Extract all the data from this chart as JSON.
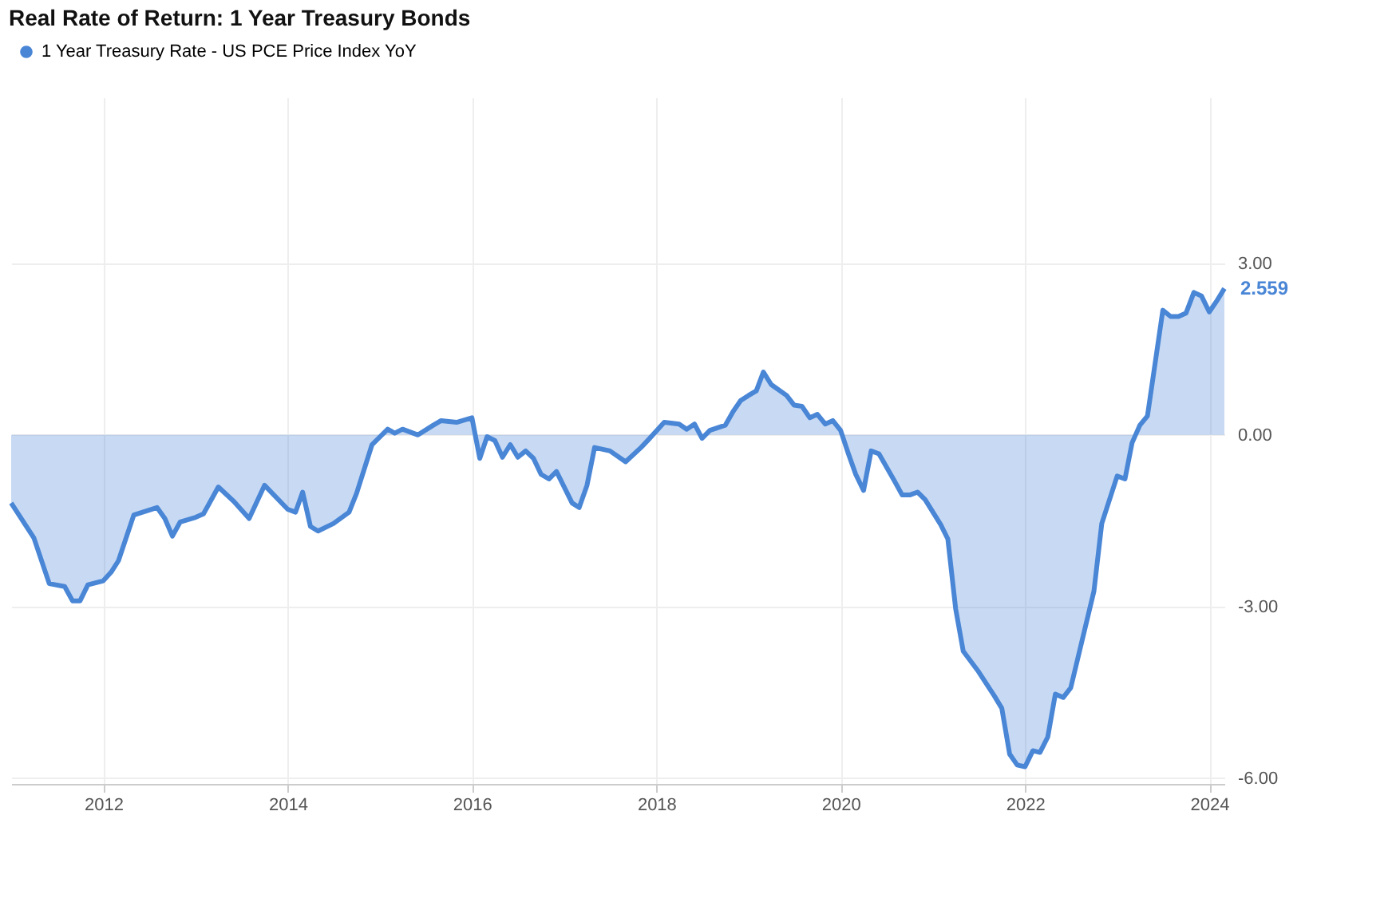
{
  "chart_data": {
    "type": "area",
    "title": "Real Rate of Return: 1 Year Treasury Bonds",
    "x": [
      "2011-01",
      "2011-04",
      "2011-06",
      "2011-08",
      "2011-09",
      "2011-10",
      "2011-11",
      "2012-01",
      "2012-02",
      "2012-03",
      "2012-05",
      "2012-08",
      "2012-09",
      "2012-10",
      "2012-11",
      "2013-01",
      "2013-02",
      "2013-04",
      "2013-06",
      "2013-08",
      "2013-10",
      "2014-01",
      "2014-02",
      "2014-03",
      "2014-04",
      "2014-05",
      "2014-07",
      "2014-09",
      "2014-10",
      "2014-12",
      "2015-02",
      "2015-03",
      "2015-04",
      "2015-06",
      "2015-08",
      "2015-09",
      "2015-11",
      "2016-01",
      "2016-02",
      "2016-03",
      "2016-04",
      "2016-05",
      "2016-06",
      "2016-07",
      "2016-08",
      "2016-09",
      "2016-10",
      "2016-11",
      "2016-12",
      "2017-02",
      "2017-03",
      "2017-04",
      "2017-05",
      "2017-07",
      "2017-09",
      "2017-11",
      "2017-12",
      "2018-02",
      "2018-04",
      "2018-05",
      "2018-06",
      "2018-07",
      "2018-08",
      "2018-10",
      "2018-11",
      "2018-12",
      "2019-01",
      "2019-02",
      "2019-03",
      "2019-04",
      "2019-06",
      "2019-07",
      "2019-08",
      "2019-09",
      "2019-10",
      "2019-11",
      "2019-12",
      "2020-01",
      "2020-02",
      "2020-03",
      "2020-04",
      "2020-05",
      "2020-06",
      "2020-08",
      "2020-09",
      "2020-10",
      "2020-11",
      "2020-12",
      "2021-02",
      "2021-03",
      "2021-04",
      "2021-05",
      "2021-07",
      "2021-09",
      "2021-10",
      "2021-11",
      "2021-12",
      "2022-01",
      "2022-02",
      "2022-03",
      "2022-04",
      "2022-05",
      "2022-06",
      "2022-07",
      "2022-10",
      "2022-11",
      "2023-01",
      "2023-02",
      "2023-03",
      "2023-04",
      "2023-05",
      "2023-07",
      "2023-08",
      "2023-09",
      "2023-10",
      "2023-11",
      "2023-12",
      "2024-01",
      "2024-02",
      "2024-03"
    ],
    "series": [
      {
        "name": "1 Year Treasury Rate - US PCE Price Index YoY",
        "color": "#4a86d6",
        "values": [
          -1.19,
          -1.8,
          -2.6,
          -2.65,
          -2.9,
          -2.9,
          -2.62,
          -2.55,
          -2.4,
          -2.2,
          -1.4,
          -1.27,
          -1.46,
          -1.77,
          -1.52,
          -1.44,
          -1.38,
          -0.91,
          -1.16,
          -1.46,
          -0.88,
          -1.3,
          -1.35,
          -1.0,
          -1.6,
          -1.68,
          -1.55,
          -1.35,
          -1.02,
          -0.17,
          0.1,
          0.03,
          0.1,
          0.0,
          0.17,
          0.25,
          0.22,
          0.3,
          -0.41,
          -0.03,
          -0.1,
          -0.39,
          -0.17,
          -0.39,
          -0.28,
          -0.41,
          -0.69,
          -0.77,
          -0.64,
          -1.19,
          -1.27,
          -0.88,
          -0.22,
          -0.28,
          -0.47,
          -0.22,
          -0.08,
          0.22,
          0.19,
          0.1,
          0.19,
          -0.06,
          0.08,
          0.17,
          0.41,
          0.6,
          0.69,
          0.77,
          1.1,
          0.88,
          0.69,
          0.52,
          0.5,
          0.3,
          0.36,
          0.19,
          0.25,
          0.08,
          -0.33,
          -0.69,
          -0.97,
          -0.28,
          -0.33,
          -0.8,
          -1.05,
          -1.05,
          -1.0,
          -1.13,
          -1.57,
          -1.82,
          -3.04,
          -3.78,
          -4.14,
          -4.56,
          -4.78,
          -5.58,
          -5.77,
          -5.8,
          -5.52,
          -5.55,
          -5.28,
          -4.53,
          -4.59,
          -4.42,
          -2.73,
          -1.55,
          -0.72,
          -0.77,
          -0.14,
          0.17,
          0.33,
          2.18,
          2.07,
          2.07,
          2.13,
          2.49,
          2.43,
          2.15,
          2.35,
          2.559
        ],
        "value_labels": [
          null,
          null,
          null,
          null,
          null,
          null,
          null,
          null,
          null,
          null,
          null,
          null,
          null,
          null,
          null,
          null,
          null,
          null,
          null,
          null,
          null,
          null,
          null,
          null,
          null,
          null,
          null,
          null,
          null,
          null,
          null,
          null,
          null,
          null,
          null,
          null,
          null,
          null,
          null,
          null,
          null,
          null,
          null,
          null,
          null,
          null,
          null,
          null,
          null,
          null,
          null,
          null,
          null,
          null,
          null,
          null,
          null,
          null,
          null,
          null,
          null,
          null,
          null,
          null,
          null,
          null,
          null,
          null,
          null,
          null,
          null,
          null,
          null,
          null,
          null,
          null,
          null,
          null,
          null,
          null,
          null,
          null,
          null,
          null,
          null,
          null,
          null,
          null,
          null,
          null,
          null,
          null,
          null,
          null,
          null,
          null,
          null,
          null,
          null,
          null,
          null,
          null,
          null,
          null,
          null,
          null,
          null,
          null,
          null,
          null,
          null,
          null,
          null,
          null,
          null,
          null,
          null,
          null,
          null,
          "2.559"
        ]
      }
    ],
    "xlim": [
      "2011-01",
      "2024-03"
    ],
    "xticks": [
      "2012",
      "2014",
      "2016",
      "2018",
      "2020",
      "2022",
      "2024"
    ],
    "ylim": [
      -6.1,
      5.9
    ],
    "yticks": [
      {
        "value": -6,
        "label": "-6.00"
      },
      {
        "value": -3,
        "label": "-3.00"
      },
      {
        "value": 0,
        "label": "0.00"
      },
      {
        "value": 3,
        "label": "3.00"
      }
    ],
    "grid": true,
    "legend": "top left"
  }
}
